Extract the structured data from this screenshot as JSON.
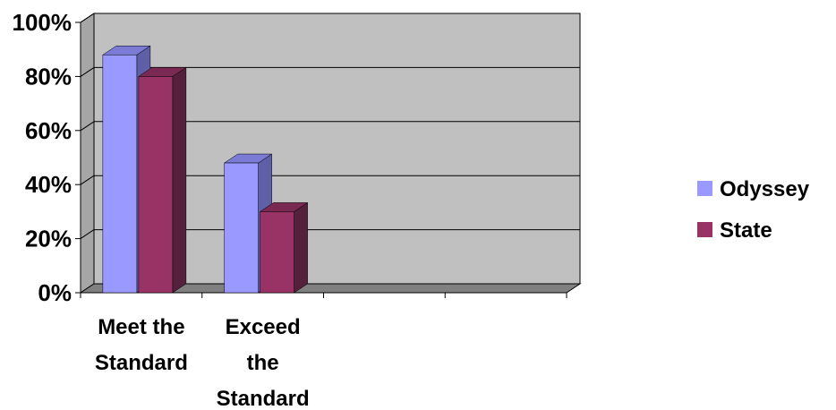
{
  "chart_data": {
    "type": "bar",
    "categories": [
      [
        "Meet the",
        "Standard"
      ],
      [
        "Exceed",
        "the",
        "Standard"
      ],
      [],
      []
    ],
    "series": [
      {
        "name": "Odyssey",
        "values": [
          88,
          48,
          null,
          null
        ],
        "color": "#9999ff",
        "top_color": "#7b7bd6",
        "side_color": "#5f5fa8"
      },
      {
        "name": "State",
        "values": [
          80,
          30,
          null,
          null
        ],
        "color": "#993366",
        "top_color": "#7a2a52",
        "side_color": "#55203b"
      }
    ],
    "ylim": [
      0,
      100
    ],
    "yticks": [
      "0%",
      "20%",
      "40%",
      "60%",
      "80%",
      "100%"
    ],
    "ytick_values": [
      0,
      20,
      40,
      60,
      80,
      100
    ],
    "grid": true,
    "legend": "right",
    "plot_bg": "#c0c0c0",
    "floor_color": "#808080",
    "title": "",
    "xlabel": "",
    "ylabel": ""
  }
}
